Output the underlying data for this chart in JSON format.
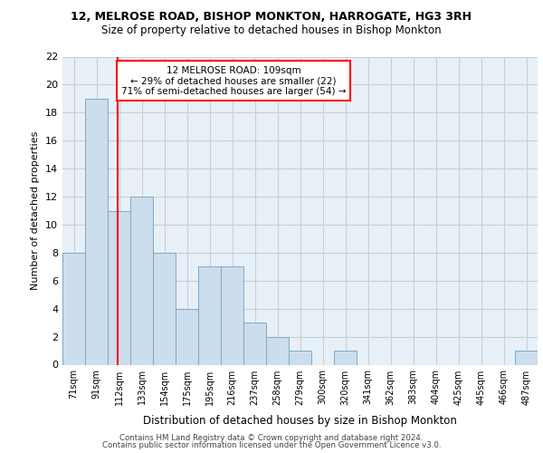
{
  "title1": "12, MELROSE ROAD, BISHOP MONKTON, HARROGATE, HG3 3RH",
  "title2": "Size of property relative to detached houses in Bishop Monkton",
  "xlabel": "Distribution of detached houses by size in Bishop Monkton",
  "ylabel": "Number of detached properties",
  "bin_labels": [
    "71sqm",
    "91sqm",
    "112sqm",
    "133sqm",
    "154sqm",
    "175sqm",
    "195sqm",
    "216sqm",
    "237sqm",
    "258sqm",
    "279sqm",
    "300sqm",
    "320sqm",
    "341sqm",
    "362sqm",
    "383sqm",
    "404sqm",
    "425sqm",
    "445sqm",
    "466sqm",
    "487sqm"
  ],
  "bar_values": [
    8,
    19,
    11,
    12,
    8,
    4,
    7,
    7,
    3,
    2,
    1,
    0,
    1,
    0,
    0,
    0,
    0,
    0,
    0,
    0,
    1
  ],
  "bar_color": "#ccdded",
  "bar_edge_color": "#7aaac8",
  "grid_color": "#c5cfd8",
  "background_color": "#e8f0f7",
  "vline_color": "red",
  "annotation_text": "12 MELROSE ROAD: 109sqm\n← 29% of detached houses are smaller (22)\n71% of semi-detached houses are larger (54) →",
  "annotation_box_color": "white",
  "annotation_box_edge": "red",
  "ylim": [
    0,
    22
  ],
  "yticks": [
    0,
    2,
    4,
    6,
    8,
    10,
    12,
    14,
    16,
    18,
    20,
    22
  ],
  "footer_line1": "Contains HM Land Registry data © Crown copyright and database right 2024.",
  "footer_line2": "Contains public sector information licensed under the Open Government Licence v3.0."
}
